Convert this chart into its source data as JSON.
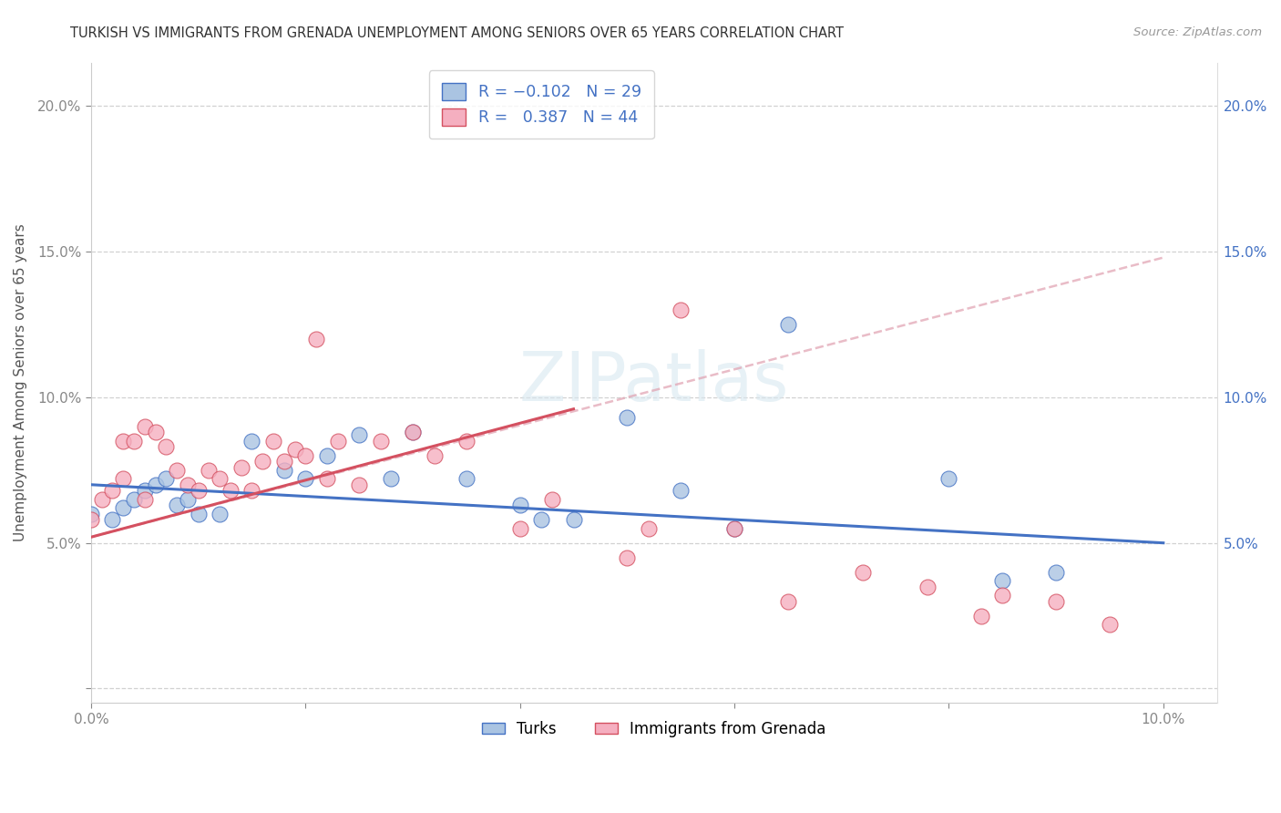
{
  "title": "TURKISH VS IMMIGRANTS FROM GRENADA UNEMPLOYMENT AMONG SENIORS OVER 65 YEARS CORRELATION CHART",
  "source": "Source: ZipAtlas.com",
  "ylabel": "Unemployment Among Seniors over 65 years",
  "xlim": [
    0.0,
    0.105
  ],
  "ylim": [
    -0.005,
    0.215
  ],
  "turks_R": "-0.102",
  "turks_N": "29",
  "grenada_R": "0.387",
  "grenada_N": "44",
  "turks_color": "#aac4e2",
  "grenada_color": "#f5afc0",
  "turks_line_color": "#4472c4",
  "grenada_line_color": "#d45060",
  "dashed_line_color": "#e0a0b0",
  "turks_x": [
    0.0,
    0.002,
    0.003,
    0.004,
    0.005,
    0.006,
    0.007,
    0.008,
    0.009,
    0.01,
    0.012,
    0.015,
    0.018,
    0.02,
    0.022,
    0.025,
    0.028,
    0.03,
    0.035,
    0.04,
    0.042,
    0.045,
    0.05,
    0.055,
    0.06,
    0.065,
    0.08,
    0.085,
    0.09
  ],
  "turks_y": [
    0.06,
    0.058,
    0.062,
    0.065,
    0.068,
    0.07,
    0.072,
    0.063,
    0.065,
    0.06,
    0.06,
    0.085,
    0.075,
    0.072,
    0.08,
    0.087,
    0.072,
    0.088,
    0.072,
    0.063,
    0.058,
    0.058,
    0.093,
    0.068,
    0.055,
    0.125,
    0.072,
    0.037,
    0.04
  ],
  "grenada_x": [
    0.0,
    0.001,
    0.002,
    0.003,
    0.003,
    0.004,
    0.005,
    0.005,
    0.006,
    0.007,
    0.008,
    0.009,
    0.01,
    0.011,
    0.012,
    0.013,
    0.014,
    0.015,
    0.016,
    0.017,
    0.018,
    0.019,
    0.02,
    0.021,
    0.022,
    0.023,
    0.025,
    0.027,
    0.03,
    0.032,
    0.035,
    0.04,
    0.043,
    0.05,
    0.052,
    0.055,
    0.06,
    0.065,
    0.072,
    0.078,
    0.083,
    0.085,
    0.09,
    0.095
  ],
  "grenada_y": [
    0.058,
    0.065,
    0.068,
    0.072,
    0.085,
    0.085,
    0.09,
    0.065,
    0.088,
    0.083,
    0.075,
    0.07,
    0.068,
    0.075,
    0.072,
    0.068,
    0.076,
    0.068,
    0.078,
    0.085,
    0.078,
    0.082,
    0.08,
    0.12,
    0.072,
    0.085,
    0.07,
    0.085,
    0.088,
    0.08,
    0.085,
    0.055,
    0.065,
    0.045,
    0.055,
    0.13,
    0.055,
    0.03,
    0.04,
    0.035,
    0.025,
    0.032,
    0.03,
    0.022
  ],
  "turks_line_x0": 0.0,
  "turks_line_y0": 0.07,
  "turks_line_x1": 0.1,
  "turks_line_y1": 0.05,
  "grenada_line_x0": 0.0,
  "grenada_line_y0": 0.052,
  "grenada_line_x1": 0.045,
  "grenada_line_y1": 0.096,
  "dashed_line_x0": 0.0,
  "dashed_line_y0": 0.052,
  "dashed_line_x1": 0.1,
  "dashed_line_y1": 0.148
}
